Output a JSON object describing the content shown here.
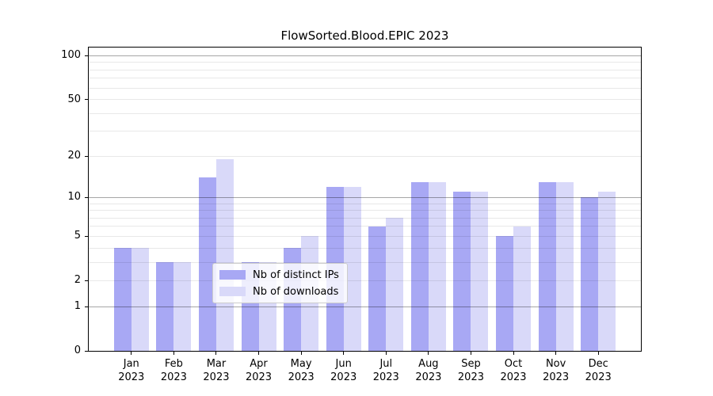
{
  "chart_data": {
    "type": "bar",
    "title": "FlowSorted.Blood.EPIC 2023",
    "categories": [
      "Jan 2023",
      "Feb 2023",
      "Mar 2023",
      "Apr 2023",
      "May 2023",
      "Jun 2023",
      "Jul 2023",
      "Aug 2023",
      "Sep 2023",
      "Oct 2023",
      "Nov 2023",
      "Dec 2023"
    ],
    "series": [
      {
        "name": "Nb of distinct IPs",
        "color": "#a8a8f4",
        "values": [
          4,
          3,
          14,
          3,
          4,
          12,
          6,
          13,
          11,
          5,
          13,
          10
        ]
      },
      {
        "name": "Nb of downloads",
        "color": "#d9d9f9",
        "values": [
          4,
          3,
          19,
          3,
          5,
          12,
          7,
          13,
          11,
          6,
          13,
          11
        ]
      }
    ],
    "y_scale": "log1p",
    "ylim": [
      0,
      114
    ],
    "y_ticks": [
      0,
      1,
      2,
      5,
      10,
      20,
      50,
      100
    ],
    "grid_major": [
      1,
      10,
      100
    ],
    "grid_minor": [
      2,
      3,
      4,
      5,
      6,
      7,
      8,
      9,
      20,
      30,
      40,
      50,
      60,
      70,
      80,
      90
    ],
    "grid": "on",
    "legend_position": "bottom-center",
    "xlabel": "",
    "ylabel": ""
  }
}
